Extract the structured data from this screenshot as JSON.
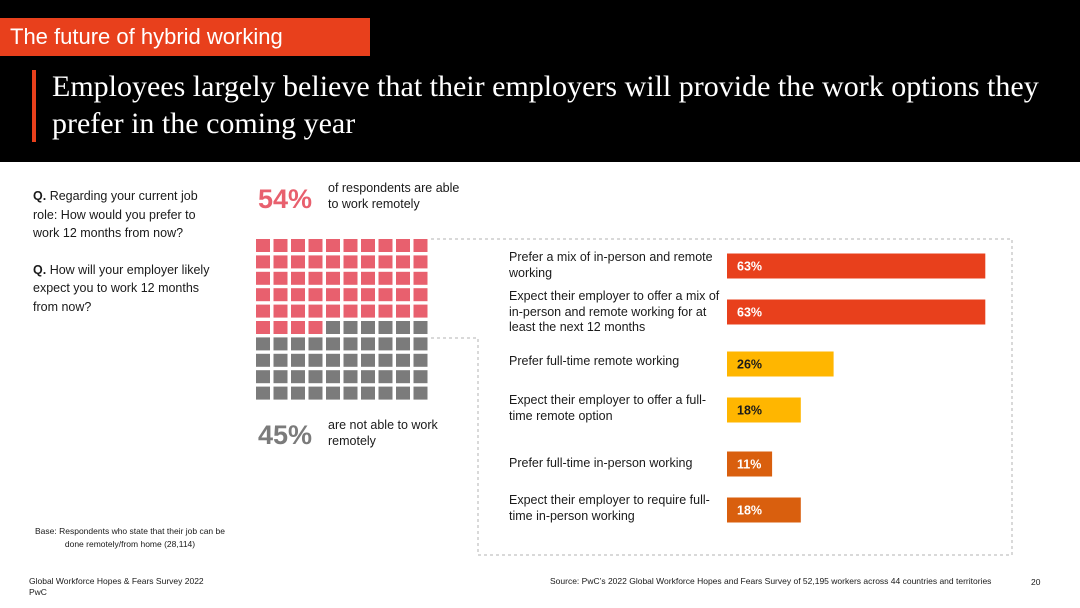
{
  "header": {
    "section_tag": "The future of hybrid working",
    "headline": "Employees largely believe that their employers will provide the work options they prefer in the coming year"
  },
  "questions": {
    "q_marker": "Q.",
    "q1": "Regarding your current job role: How would you prefer to work 12 months from now?",
    "q2": "How will your employer likely expect you to work 12 months from now?"
  },
  "base_note": "Base: Respondents who state that their job can be done remotely/from home (28,114)",
  "footer": {
    "survey": "Global Workforce Hopes & Fears Survey 2022",
    "org": "PwC",
    "source": "Source: PwC’s 2022 Global Workforce Hopes and Fears Survey of 52,195 workers across 44 countries and territories",
    "page_number": "20"
  },
  "colors": {
    "accent": "#e8401c",
    "waffle_remote": "#e8606e",
    "waffle_not_remote": "#7b7b7b",
    "hybrid": "#e8401c",
    "remote": "#ffb600",
    "in_person": "#d95f0e"
  },
  "chart_data": [
    {
      "type": "waffle",
      "grid": {
        "rows": 10,
        "cols": 10
      },
      "segments": [
        {
          "value": 54,
          "label": "54%",
          "caption": "of respondents are able to work remotely"
        },
        {
          "value": 45,
          "label": "45%",
          "caption": "are not able to work remotely"
        }
      ]
    },
    {
      "type": "bar",
      "orientation": "horizontal",
      "xlim": [
        0,
        100
      ],
      "categories": [
        "Prefer a mix of in-person and remote working",
        "Expect their employer to offer a mix of in-person and remote working for at least the next 12 months",
        "Prefer full-time remote working",
        "Expect their employer to offer a full-time remote option",
        "Prefer full-time in-person working",
        "Expect their employer to require full-time in-person working"
      ],
      "values": [
        63,
        63,
        26,
        18,
        11,
        18
      ],
      "data_labels": [
        "63%",
        "63%",
        "26%",
        "18%",
        "11%",
        "18%"
      ],
      "groups": [
        "hybrid",
        "hybrid",
        "remote",
        "remote",
        "in_person",
        "in_person"
      ]
    }
  ]
}
